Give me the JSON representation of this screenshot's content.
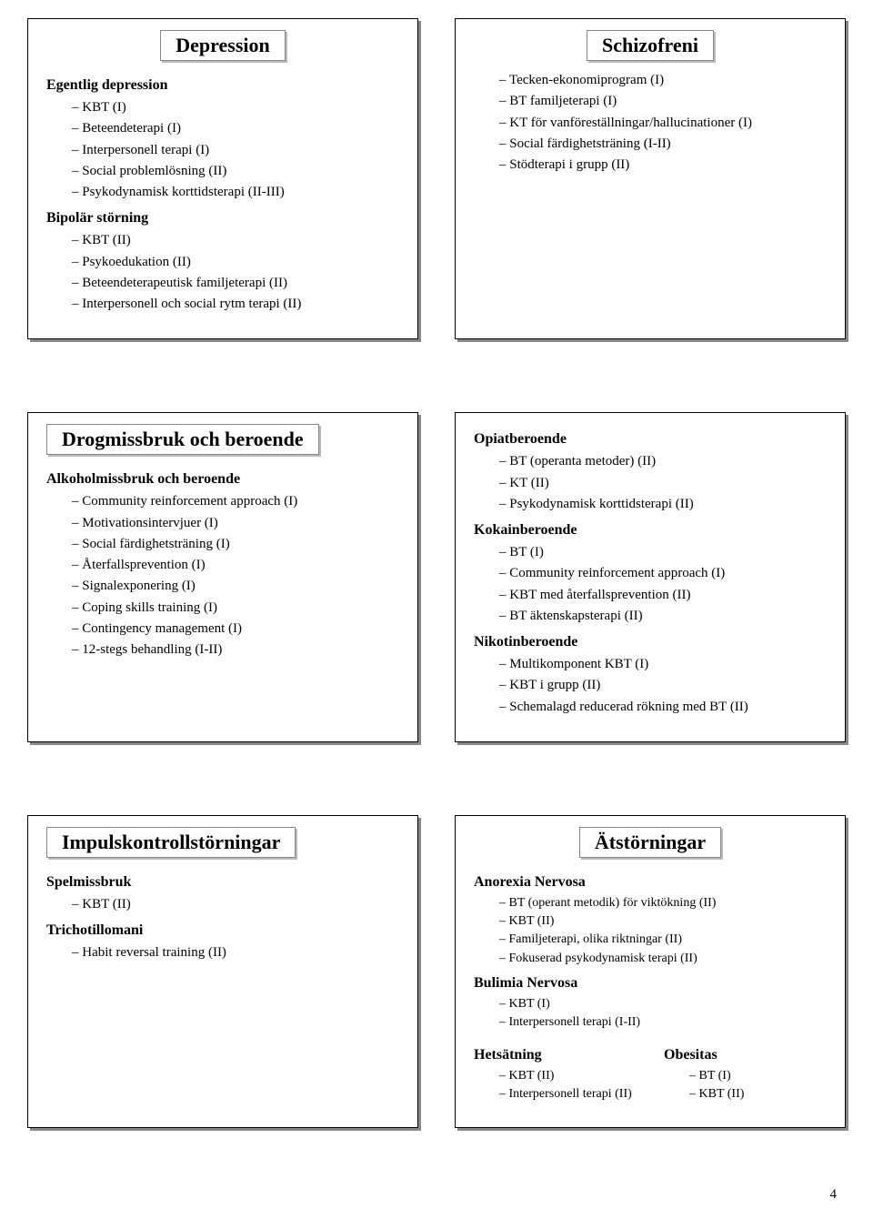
{
  "page_number": "4",
  "panels": {
    "depression": {
      "title": "Depression",
      "groups": [
        {
          "heading": "Egentlig depression",
          "items": [
            "KBT (I)",
            "Beteendeterapi (I)",
            "Interpersonell terapi (I)",
            "Social problemlösning (II)",
            "Psykodynamisk korttidsterapi (II-III)"
          ]
        },
        {
          "heading": "Bipolär störning",
          "items": [
            "KBT (II)",
            "Psykoedukation (II)",
            "Beteendeterapeutisk familjeterapi (II)",
            "Interpersonell och social rytm terapi (II)"
          ]
        }
      ]
    },
    "schizofreni": {
      "title": "Schizofreni",
      "groups": [
        {
          "heading": "",
          "items": [
            "Tecken-ekonomiprogram (I)",
            "BT familjeterapi (I)",
            "KT för vanföreställningar/hallucinationer (I)",
            "Social färdighetsträning (I-II)",
            "Stödterapi i grupp (II)"
          ]
        }
      ]
    },
    "drog": {
      "title": "Drogmissbruk och beroende",
      "groups": [
        {
          "heading": "Alkoholmissbruk och beroende",
          "items": [
            "Community reinforcement approach (I)",
            "Motivationsintervjuer (I)",
            "Social färdighetsträning (I)",
            "Återfallsprevention (I)",
            "Signalexponering (I)",
            "Coping skills training (I)",
            "Contingency management (I)",
            "12-stegs behandling (I-II)"
          ]
        }
      ]
    },
    "drog_right": {
      "groups": [
        {
          "heading": "Opiatberoende",
          "items": [
            "BT (operanta metoder) (II)",
            "KT (II)",
            "Psykodynamisk korttidsterapi (II)"
          ]
        },
        {
          "heading": "Kokainberoende",
          "items": [
            "BT (I)",
            "Community reinforcement approach (I)",
            "KBT med återfallsprevention (II)",
            "BT äktenskapsterapi (II)"
          ]
        },
        {
          "heading": "Nikotinberoende",
          "items": [
            "Multikomponent KBT (I)",
            "KBT i grupp (II)",
            "Schemalagd reducerad rökning med BT (II)"
          ]
        }
      ]
    },
    "impuls": {
      "title": "Impulskontrollstörningar",
      "groups": [
        {
          "heading": "Spelmissbruk",
          "items": [
            "KBT (II)"
          ]
        },
        {
          "heading": "Trichotillomani",
          "items": [
            "Habit reversal training (II)"
          ]
        }
      ]
    },
    "atstorningar": {
      "title": "Ätstörningar",
      "groups": [
        {
          "heading": "Anorexia Nervosa",
          "items": [
            "BT (operant metodik) för viktökning  (II)",
            "KBT (II)",
            "Familjeterapi, olika riktningar (II)",
            "Fokuserad psykodynamisk terapi (II)"
          ]
        },
        {
          "heading": "Bulimia Nervosa",
          "items": [
            "KBT (I)",
            "Interpersonell terapi (I-II)"
          ]
        }
      ],
      "twocol": {
        "left": {
          "heading": "Hetsätning",
          "items": [
            "KBT (II)",
            "Interpersonell terapi (II)"
          ]
        },
        "right": {
          "heading": "Obesitas",
          "items": [
            "BT (I)",
            "KBT (II)"
          ]
        }
      }
    }
  }
}
